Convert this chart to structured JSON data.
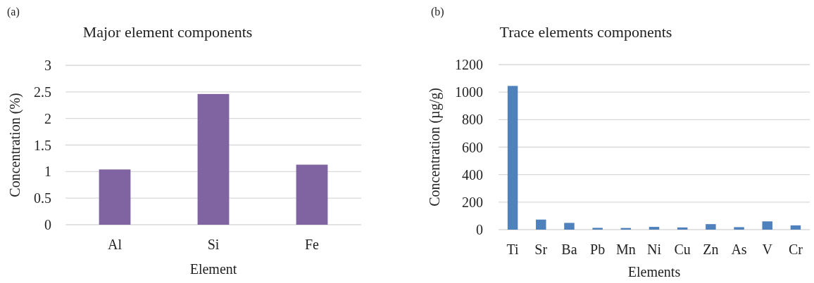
{
  "chart_data": [
    {
      "type": "bar",
      "title": "Major element components",
      "xlabel": "Element",
      "ylabel": "Concentration (%)",
      "annotations": [
        "(a)"
      ],
      "categories": [
        "Al",
        "Si",
        "Fe"
      ],
      "values": [
        1.04,
        2.46,
        1.13
      ],
      "color": "#8064a2",
      "ylim": [
        0,
        3
      ],
      "yticks": [
        0,
        0.5,
        1,
        1.5,
        2,
        2.5,
        3
      ],
      "grid": "y"
    },
    {
      "type": "bar",
      "title": "Trace elements components",
      "xlabel": "Elements",
      "ylabel": "Concentration (µg/g)",
      "annotations": [
        "(b)"
      ],
      "categories": [
        "Ti",
        "Sr",
        "Ba",
        "Pb",
        "Mn",
        "Ni",
        "Cu",
        "Zn",
        "As",
        "V",
        "Cr"
      ],
      "values": [
        1045,
        73,
        49,
        13,
        12,
        20,
        16,
        40,
        18,
        60,
        31
      ],
      "color": "#4f81bd",
      "ylim": [
        0,
        1200
      ],
      "yticks": [
        0,
        200,
        400,
        600,
        800,
        1000,
        1200
      ],
      "grid": "y"
    }
  ]
}
